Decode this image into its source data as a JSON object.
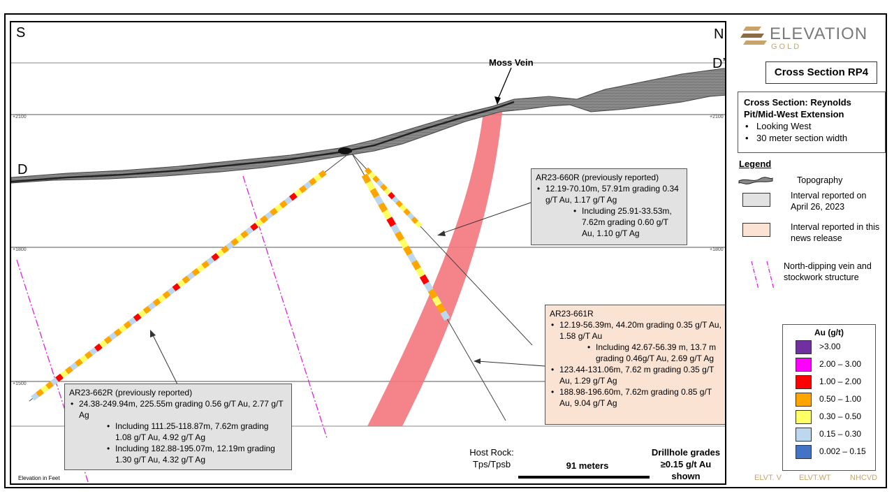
{
  "section": {
    "compass_left": "S",
    "compass_right": "N",
    "point_left": "D",
    "point_right": "D’",
    "elevation_labels": {
      "left": [
        "+2100",
        "+1800",
        "+1500"
      ],
      "right": [
        "+2100",
        "+1800"
      ]
    },
    "vein_label": "Moss Vein",
    "elevation_note": "Elevation in Feet"
  },
  "callouts": {
    "c660": {
      "title": "AR23-660R (previously reported)",
      "items": [
        "12.19-70.10m, 57.91m grading 0.34 g/T Au, 1.17 g/T Ag",
        "Including 25.91-33.53m, 7.62m grading 0.60 g/T Au, 1.10 g/T Ag"
      ]
    },
    "c661": {
      "title": "AR23-661R",
      "items": [
        "12.19-56.39m, 44.20m grading 0.35 g/T Au, 1.58 g/T Au",
        "Including 42.67-56.39 m, 13.7 m grading 0.46g/T Au, 2.69 g/T Ag",
        "123.44-131.06m, 7.62 m grading 0.35 g/T Au, 1.29 g/T Ag",
        "188.98-196.60m, 7.62m grading 0.85 g/T Au, 9.04 g/T Ag"
      ]
    },
    "c662": {
      "title": "AR23-662R (previously reported)",
      "items": [
        "24.38-249.94m, 225.55m grading 0.56 g/T Au, 2.77 g/T Ag",
        "Including 111.25-118.87m, 7.62m grading 1.08 g/T Au, 4.92 g/T Ag",
        "Including 182.88-195.07m, 12.19m grading 1.30 g/T Au, 4.32 g/T Ag"
      ]
    }
  },
  "bottom": {
    "host_rock": "Host Rock:\nTps/Tpsb",
    "scale": "91 meters",
    "grades_note": "Drillhole grades\n≥0.15 g/t Au\nshown"
  },
  "logo": {
    "word": "ELEVATION",
    "sub": "GOLD"
  },
  "title_box": "Cross Section RP4",
  "info": {
    "heading": "Cross Section: Reynolds Pit/Mid-West Extension",
    "items": [
      "Looking West",
      "30 meter section width"
    ]
  },
  "legend": {
    "title": "Legend",
    "topography": "Topography",
    "apr26": "Interval reported on April 26, 2023",
    "news": "Interval reported in this news release",
    "vein": "North-dipping vein and stockwork structure"
  },
  "au_scale": {
    "title": "Au (g/t)",
    "bins": [
      {
        "label": ">3.00",
        "color": "#7030a0"
      },
      {
        "label": "2.00 – 3.00",
        "color": "#ff00ff"
      },
      {
        "label": "1.00 – 2.00",
        "color": "#ff0000"
      },
      {
        "label": "0.50 – 1.00",
        "color": "#ffa500"
      },
      {
        "label": "0.30 – 0.50",
        "color": "#ffff66"
      },
      {
        "label": "0.15 – 0.30",
        "color": "#bdd7ee"
      },
      {
        "label": "0.002 – 0.15",
        "color": "#4472c4"
      }
    ]
  },
  "footer": [
    "ELVT. V",
    "ELVT.WT",
    "NHCVD"
  ],
  "colors": {
    "vein_band": "#f4777d",
    "interval_gray": "#e2e2e2",
    "interval_peach": "#fbe3d4",
    "legend_title_border": "#c00000"
  }
}
